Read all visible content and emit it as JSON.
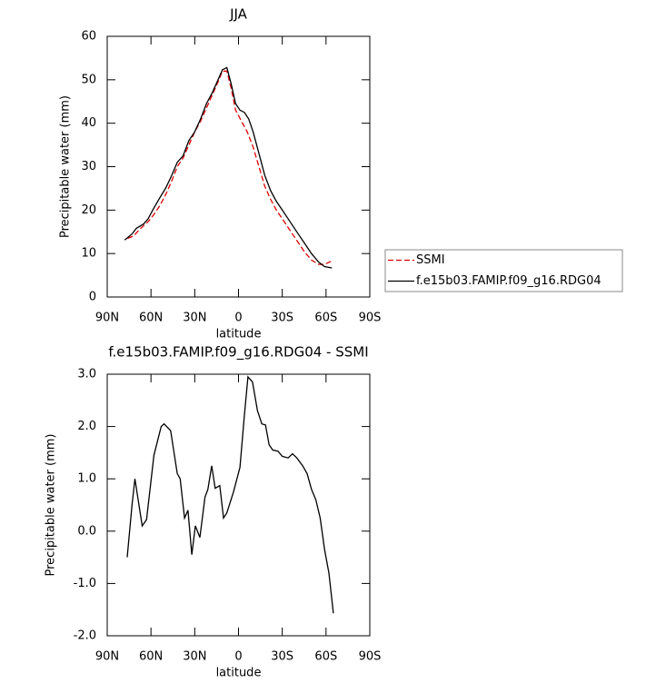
{
  "chart_data": [
    {
      "type": "line",
      "title": "JJA",
      "xlabel": "latitude",
      "ylabel": "Precipitable water (mm)",
      "xlim": [
        90,
        -90
      ],
      "xticks": [
        {
          "value": 90,
          "label": "90N"
        },
        {
          "value": 60,
          "label": "60N"
        },
        {
          "value": 30,
          "label": "30N"
        },
        0,
        {
          "value": -30,
          "label": "30S"
        },
        {
          "value": -60,
          "label": "60S"
        },
        {
          "value": -90,
          "label": "90S"
        }
      ],
      "ylim": [
        0,
        60
      ],
      "yticks": [
        0,
        10,
        20,
        30,
        40,
        50,
        60
      ],
      "series": [
        {
          "name": "SSMI",
          "color": "#e00000",
          "dash": true,
          "x": [
            76,
            72,
            68,
            62,
            58,
            54,
            50,
            46,
            42,
            38,
            34,
            30,
            26,
            22,
            18,
            14,
            11,
            8,
            5,
            2,
            -2,
            -6,
            -10,
            -14,
            -18,
            -22,
            -26,
            -30,
            -35,
            -40,
            -45,
            -50,
            -55,
            -59,
            -64
          ],
          "values": [
            13.5,
            14,
            15.5,
            17.3,
            19,
            21,
            23.5,
            26.5,
            30,
            32,
            35,
            38,
            40.5,
            43.5,
            46.5,
            49.5,
            52,
            52,
            48,
            43,
            40.5,
            38,
            34.5,
            30,
            25.5,
            22.5,
            20,
            18,
            15.5,
            13,
            10.5,
            8.5,
            7.5,
            7.5,
            8.3
          ]
        },
        {
          "name": "f.e15b03.FAMIP.f09_g16.RDG04",
          "color": "#000000",
          "dash": false,
          "x": [
            78,
            73,
            70,
            65,
            62,
            58,
            54,
            50,
            46,
            42,
            38,
            34,
            30,
            26,
            22,
            18,
            14,
            11,
            8,
            5,
            2,
            -1,
            -4,
            -7,
            -10,
            -14,
            -18,
            -22,
            -26,
            -30,
            -35,
            -40,
            -45,
            -50,
            -55,
            -59,
            -64
          ],
          "values": [
            13.1,
            14.5,
            15.8,
            16.8,
            18,
            20.5,
            22.8,
            25,
            27.8,
            31,
            32.5,
            36,
            38,
            41,
            44.5,
            47,
            50,
            52.3,
            52.8,
            49,
            44.5,
            43,
            42.5,
            41,
            38,
            33,
            28,
            24.5,
            22,
            20,
            17.5,
            15,
            12.5,
            10,
            8,
            7,
            6.7
          ]
        }
      ]
    },
    {
      "type": "line",
      "title": "f.e15b03.FAMIP.f09_g16.RDG04 - SSMI",
      "xlabel": "latitude",
      "ylabel": "Precipitable water (mm)",
      "xlim": [
        90,
        -90
      ],
      "xticks": [
        {
          "value": 90,
          "label": "90N"
        },
        {
          "value": 60,
          "label": "60N"
        },
        {
          "value": 30,
          "label": "30N"
        },
        0,
        {
          "value": -30,
          "label": "30S"
        },
        {
          "value": -60,
          "label": "60S"
        },
        {
          "value": -90,
          "label": "90S"
        }
      ],
      "ylim": [
        -2,
        3
      ],
      "yticks": [
        {
          "value": -2,
          "label": "-2.0"
        },
        {
          "value": -1,
          "label": "-1.0"
        },
        {
          "value": 0,
          "label": "0.0"
        },
        {
          "value": 1,
          "label": "1.0"
        },
        {
          "value": 2,
          "label": "2.0"
        },
        {
          "value": 3,
          "label": "3.0"
        }
      ],
      "color": "#000000",
      "x": [
        76.3,
        73,
        71,
        66,
        63,
        58,
        53,
        51,
        46.5,
        42,
        40,
        37,
        34.6,
        32,
        29.6,
        26.5,
        23,
        21,
        18.4,
        16,
        12.8,
        10.3,
        8,
        3.4,
        -1,
        -4,
        -6.5,
        -9.6,
        -13,
        -16,
        -18.5,
        -21,
        -23.5,
        -27,
        -30,
        -34,
        -37,
        -40,
        -44,
        -47,
        -50,
        -53,
        -56,
        -59,
        -62,
        -65
      ],
      "values": [
        -0.5,
        0.5,
        1.0,
        0.1,
        0.22,
        1.45,
        2.0,
        2.05,
        1.92,
        1.1,
        1.0,
        0.25,
        0.4,
        -0.45,
        0.1,
        -0.12,
        0.65,
        0.8,
        1.25,
        0.82,
        0.87,
        0.25,
        0.35,
        0.75,
        1.22,
        2.2,
        2.95,
        2.85,
        2.3,
        2.05,
        2.03,
        1.65,
        1.55,
        1.53,
        1.43,
        1.4,
        1.48,
        1.4,
        1.25,
        1.1,
        0.8,
        0.6,
        0.25,
        -0.35,
        -0.8,
        -1.57
      ]
    }
  ]
}
